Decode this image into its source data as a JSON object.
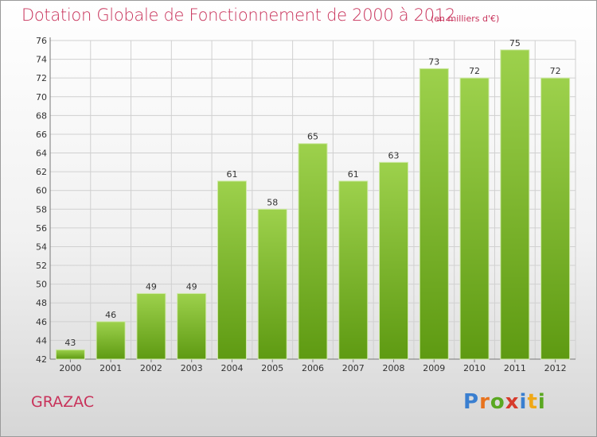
{
  "header": {
    "title": "Dotation Globale de Fonctionnement de 2000 à 2012",
    "unit": "(en milliers d'€)"
  },
  "footer": {
    "commune": "GRAZAC",
    "logo_text": "Proxiti"
  },
  "colors": {
    "accent": "#c8325a",
    "bar_top": "#9dd14c",
    "bar_bottom": "#5e9a12",
    "grid": "#d0d0d0"
  },
  "chart_data": {
    "type": "bar",
    "title": "Dotation Globale de Fonctionnement de 2000 à 2012",
    "subtitle": "(en milliers d'€)",
    "xlabel": "",
    "ylabel": "",
    "categories": [
      "2000",
      "2001",
      "2002",
      "2003",
      "2004",
      "2005",
      "2006",
      "2007",
      "2008",
      "2009",
      "2010",
      "2011",
      "2012"
    ],
    "values": [
      43,
      46,
      49,
      49,
      61,
      58,
      65,
      61,
      63,
      73,
      72,
      75,
      72
    ],
    "ylim": [
      42,
      76
    ],
    "yticks": [
      42,
      44,
      46,
      48,
      50,
      52,
      54,
      56,
      58,
      60,
      62,
      64,
      66,
      68,
      70,
      72,
      74,
      76
    ],
    "grid": true,
    "data_labels": true
  }
}
